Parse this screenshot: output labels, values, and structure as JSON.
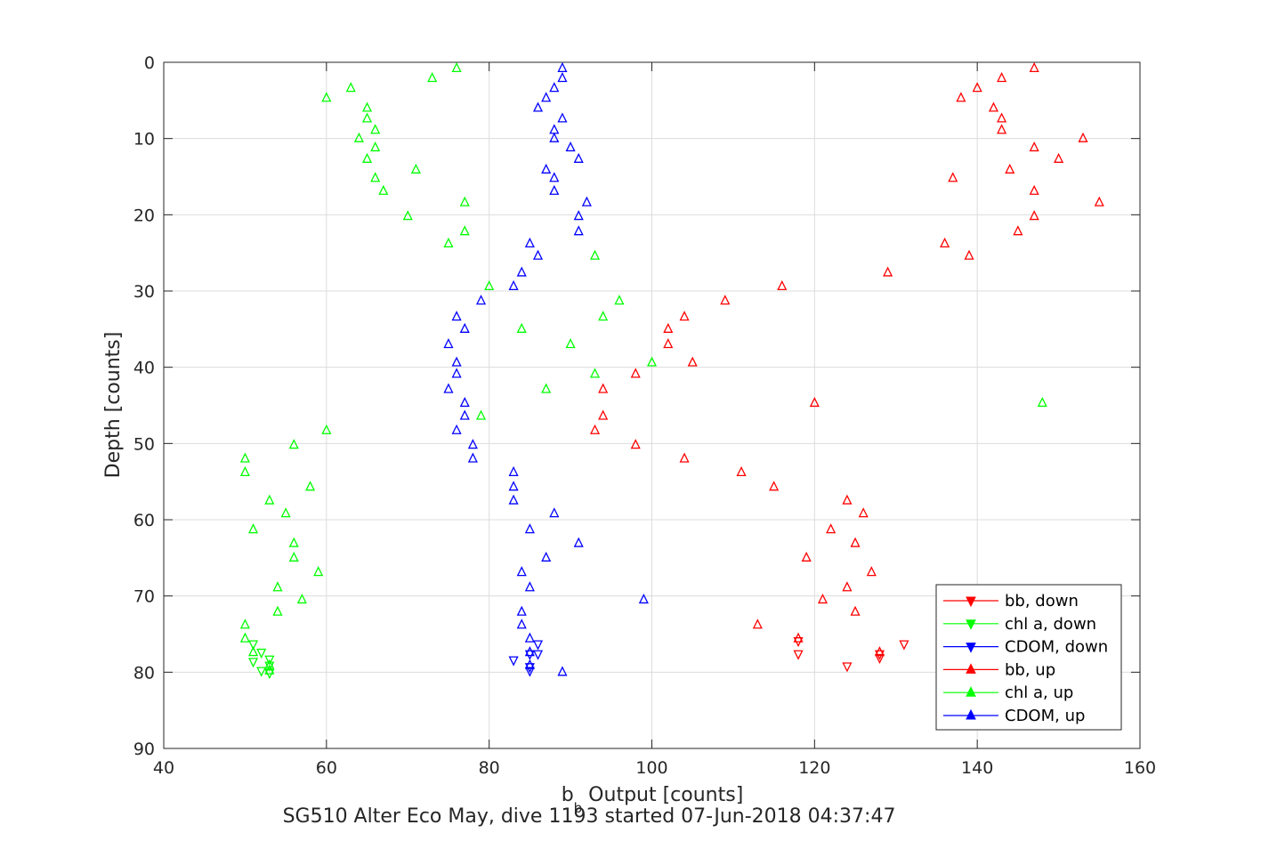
{
  "chart_data": {
    "type": "scatter",
    "x_axis": {
      "label_main": "b",
      "label_sub": "b",
      "label_rest": " Output [counts]",
      "range": [
        40,
        160
      ],
      "ticks": [
        40,
        60,
        80,
        100,
        120,
        140,
        160
      ]
    },
    "y_axis": {
      "label": "Depth [counts]",
      "range": [
        0,
        90
      ],
      "reversed": true,
      "ticks": [
        0,
        10,
        20,
        30,
        40,
        50,
        60,
        70,
        80,
        90
      ]
    },
    "caption": "SG510 Alter Eco May, dive 1193 started 07-Jun-2018 04:37:47",
    "grid": true,
    "legend_position": "bottom-right",
    "series": [
      {
        "name": "bb, down",
        "color": "#ff0000",
        "marker": "triangle-down",
        "points": [
          [
            124,
            79.2
          ],
          [
            128,
            78.1
          ],
          [
            128,
            77.6
          ],
          [
            131,
            76.3
          ],
          [
            118,
            77.6
          ],
          [
            118,
            75.9
          ]
        ]
      },
      {
        "name": "chl a, down",
        "color": "#00ff00",
        "marker": "triangle-down",
        "points": [
          [
            51,
            76.3
          ],
          [
            52,
            77.4
          ],
          [
            53,
            78.3
          ],
          [
            53,
            79.1
          ],
          [
            52,
            79.8
          ],
          [
            53,
            80.1
          ],
          [
            51,
            78.6
          ]
        ]
      },
      {
        "name": "CDOM, down",
        "color": "#0000ff",
        "marker": "triangle-down",
        "points": [
          [
            86,
            76.3
          ],
          [
            86,
            77.6
          ],
          [
            83,
            78.4
          ],
          [
            85,
            79.3
          ],
          [
            85,
            79.8
          ],
          [
            85,
            77.6
          ]
        ]
      },
      {
        "name": "bb, up",
        "color": "#ff0000",
        "marker": "triangle-up",
        "points": [
          [
            147,
            0.8
          ],
          [
            143,
            2.1
          ],
          [
            140,
            3.4
          ],
          [
            138,
            4.7
          ],
          [
            142,
            6.0
          ],
          [
            143,
            7.4
          ],
          [
            143,
            8.9
          ],
          [
            153,
            10.0
          ],
          [
            147,
            11.2
          ],
          [
            150,
            12.7
          ],
          [
            144,
            14.1
          ],
          [
            137,
            15.2
          ],
          [
            147,
            16.9
          ],
          [
            155,
            18.4
          ],
          [
            147,
            20.2
          ],
          [
            145,
            22.2
          ],
          [
            136,
            23.8
          ],
          [
            139,
            25.4
          ],
          [
            129,
            27.6
          ],
          [
            116,
            29.4
          ],
          [
            109,
            31.3
          ],
          [
            104,
            33.4
          ],
          [
            102,
            35.0
          ],
          [
            102,
            37.0
          ],
          [
            105,
            39.4
          ],
          [
            98,
            40.9
          ],
          [
            94,
            42.9
          ],
          [
            120,
            44.7
          ],
          [
            94,
            46.4
          ],
          [
            93,
            48.3
          ],
          [
            98,
            50.2
          ],
          [
            104,
            52.0
          ],
          [
            111,
            53.8
          ],
          [
            115,
            55.7
          ],
          [
            124,
            57.5
          ],
          [
            126,
            59.2
          ],
          [
            122,
            61.3
          ],
          [
            125,
            63.1
          ],
          [
            119,
            65.0
          ],
          [
            127,
            66.9
          ],
          [
            124,
            68.9
          ],
          [
            121,
            70.5
          ],
          [
            125,
            72.1
          ],
          [
            113,
            73.8
          ],
          [
            118,
            75.6
          ],
          [
            128,
            77.4
          ]
        ]
      },
      {
        "name": "chl a, up",
        "color": "#00ff00",
        "marker": "triangle-up",
        "points": [
          [
            76,
            0.8
          ],
          [
            73,
            2.1
          ],
          [
            63,
            3.4
          ],
          [
            60,
            4.7
          ],
          [
            65,
            6.0
          ],
          [
            65,
            7.4
          ],
          [
            66,
            8.9
          ],
          [
            64,
            10.0
          ],
          [
            66,
            11.2
          ],
          [
            65,
            12.7
          ],
          [
            71,
            14.1
          ],
          [
            66,
            15.2
          ],
          [
            67,
            16.9
          ],
          [
            77,
            18.4
          ],
          [
            70,
            20.2
          ],
          [
            77,
            22.2
          ],
          [
            75,
            23.8
          ],
          [
            93,
            25.4
          ],
          [
            80,
            29.4
          ],
          [
            96,
            31.3
          ],
          [
            94,
            33.4
          ],
          [
            84,
            35.0
          ],
          [
            90,
            37.0
          ],
          [
            100,
            39.4
          ],
          [
            93,
            40.9
          ],
          [
            87,
            42.9
          ],
          [
            148,
            44.7
          ],
          [
            79,
            46.4
          ],
          [
            60,
            48.3
          ],
          [
            56,
            50.2
          ],
          [
            50,
            52.0
          ],
          [
            50,
            53.8
          ],
          [
            58,
            55.7
          ],
          [
            53,
            57.5
          ],
          [
            55,
            59.2
          ],
          [
            51,
            61.3
          ],
          [
            56,
            63.1
          ],
          [
            56,
            65.0
          ],
          [
            59,
            66.9
          ],
          [
            54,
            68.9
          ],
          [
            57,
            70.5
          ],
          [
            54,
            72.1
          ],
          [
            50,
            73.8
          ],
          [
            50,
            75.6
          ],
          [
            51,
            77.4
          ],
          [
            53,
            79.1
          ],
          [
            53,
            79.8
          ]
        ]
      },
      {
        "name": "CDOM, up",
        "color": "#0000ff",
        "marker": "triangle-up",
        "points": [
          [
            89,
            0.8
          ],
          [
            89,
            2.1
          ],
          [
            88,
            3.4
          ],
          [
            87,
            4.7
          ],
          [
            86,
            6.0
          ],
          [
            89,
            7.4
          ],
          [
            88,
            8.9
          ],
          [
            88,
            10.0
          ],
          [
            90,
            11.2
          ],
          [
            91,
            12.7
          ],
          [
            87,
            14.1
          ],
          [
            88,
            15.2
          ],
          [
            88,
            16.9
          ],
          [
            92,
            18.4
          ],
          [
            91,
            20.2
          ],
          [
            91,
            22.2
          ],
          [
            85,
            23.8
          ],
          [
            86,
            25.4
          ],
          [
            84,
            27.6
          ],
          [
            83,
            29.4
          ],
          [
            79,
            31.3
          ],
          [
            76,
            33.4
          ],
          [
            77,
            35.0
          ],
          [
            75,
            37.0
          ],
          [
            76,
            39.4
          ],
          [
            76,
            40.9
          ],
          [
            75,
            42.9
          ],
          [
            77,
            44.7
          ],
          [
            77,
            46.4
          ],
          [
            76,
            48.3
          ],
          [
            78,
            50.2
          ],
          [
            78,
            52.0
          ],
          [
            83,
            53.8
          ],
          [
            83,
            55.7
          ],
          [
            83,
            57.5
          ],
          [
            88,
            59.2
          ],
          [
            85,
            61.3
          ],
          [
            91,
            63.1
          ],
          [
            87,
            65.0
          ],
          [
            84,
            66.9
          ],
          [
            85,
            68.9
          ],
          [
            99,
            70.5
          ],
          [
            84,
            72.1
          ],
          [
            84,
            73.8
          ],
          [
            85,
            75.6
          ],
          [
            85,
            77.4
          ],
          [
            85,
            79.1
          ],
          [
            89,
            80.0
          ]
        ]
      }
    ]
  }
}
